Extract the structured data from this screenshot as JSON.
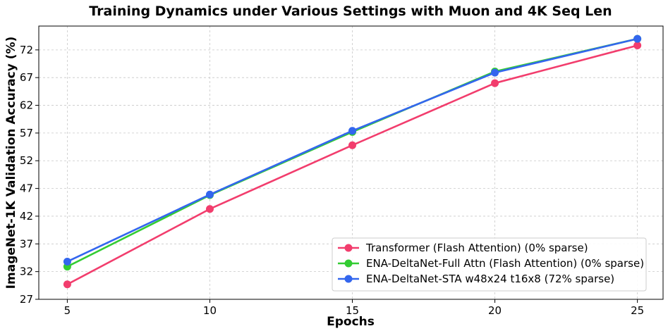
{
  "chart_data": {
    "type": "line",
    "title": "Training Dynamics under Various Settings with Muon and 4K Seq Len",
    "xlabel": "Epochs",
    "ylabel": "ImageNet-1K Validation Accuracy (%)",
    "x": [
      5,
      10,
      15,
      20,
      25
    ],
    "xticks": [
      5,
      10,
      15,
      20,
      25
    ],
    "yticks": [
      27,
      32,
      37,
      42,
      47,
      52,
      57,
      62,
      67,
      72
    ],
    "xlim": [
      4.0,
      25.9
    ],
    "ylim": [
      27,
      76.3
    ],
    "grid": true,
    "legend_position": "lower-right",
    "series": [
      {
        "name": "Transformer (Flash Attention) (0% sparse)",
        "color": "#f23d6d",
        "values": [
          29.7,
          43.3,
          54.8,
          66.0,
          72.8
        ]
      },
      {
        "name": "ENA-DeltaNet-Full Attn (Flash Attention) (0% sparse)",
        "color": "#33cc33",
        "values": [
          32.9,
          45.8,
          57.2,
          68.1,
          74.0
        ]
      },
      {
        "name": "ENA-DeltaNet-STA w48x24 t16x8 (72% sparse)",
        "color": "#3366ee",
        "values": [
          33.8,
          45.9,
          57.4,
          67.9,
          74.0
        ]
      }
    ]
  }
}
